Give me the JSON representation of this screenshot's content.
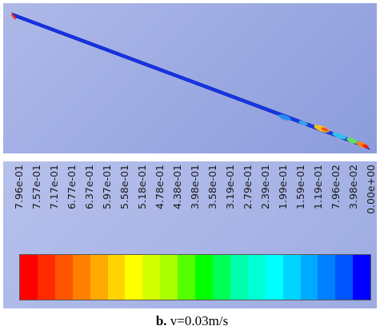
{
  "caption": {
    "label": "b.",
    "text": "v=0.03m/s"
  },
  "legend": {
    "ticks": [
      "7.96e-01",
      "7.57e-01",
      "7.17e-01",
      "6.77e-01",
      "6.37e-01",
      "5.97e-01",
      "5.58e-01",
      "5.18e-01",
      "4.78e-01",
      "4.38e-01",
      "3.98e-01",
      "3.58e-01",
      "3.19e-01",
      "2.79e-01",
      "2.39e-01",
      "1.99e-01",
      "1.59e-01",
      "1.19e-01",
      "7.96e-02",
      "3.98e-02",
      "0.00e+00"
    ],
    "colors": [
      "#ff0000",
      "#ff2a00",
      "#ff5500",
      "#ff7f00",
      "#ffaa00",
      "#ffd400",
      "#ffff00",
      "#d4ff00",
      "#aaff00",
      "#55ff00",
      "#00ff00",
      "#00ff55",
      "#00ffaa",
      "#00ffd4",
      "#00ffff",
      "#00d4ff",
      "#00aaff",
      "#007fff",
      "#0055ff",
      "#0000ff"
    ]
  },
  "colors": {
    "background_top": "#aeb9e9",
    "background_bottom": "#8c9cdc",
    "pipe_base": "#1430e6",
    "pipe_outline": "#0a1fa8"
  }
}
